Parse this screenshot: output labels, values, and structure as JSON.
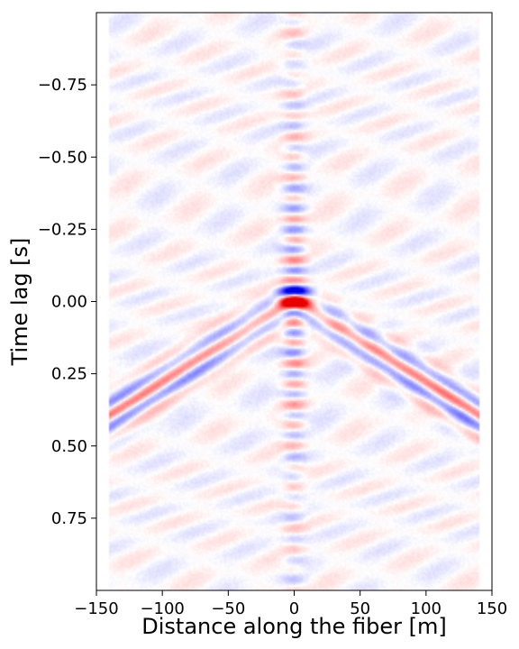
{
  "chart_data": {
    "type": "heatmap",
    "title": "",
    "xlabel": "Distance along the fiber [m]",
    "ylabel": "Time lag [s]",
    "xlim": [
      -150,
      150
    ],
    "ylim": [
      -1.0,
      1.0
    ],
    "y_inverted": true,
    "x_ticks": [
      -150,
      -100,
      -50,
      0,
      50,
      100,
      150
    ],
    "x_tick_labels": [
      "−150",
      "−100",
      "−50",
      "0",
      "50",
      "100",
      "150"
    ],
    "y_ticks": [
      -0.75,
      -0.5,
      -0.25,
      0.0,
      0.25,
      0.5,
      0.75
    ],
    "y_tick_labels": [
      "−0.75",
      "−0.50",
      "−0.25",
      "0.00",
      "0.25",
      "0.50",
      "0.75"
    ],
    "colormap": "seismic",
    "colors": {
      "positive": "#d40000",
      "negative": "#0000d4",
      "zero": "#ffffff"
    },
    "grid": false,
    "features": {
      "central_peak": {
        "x": 0,
        "t": 0.0,
        "sign": "positive"
      },
      "apparent_velocity_m_per_s": 350,
      "data_x_extent": [
        -140,
        140
      ]
    }
  }
}
